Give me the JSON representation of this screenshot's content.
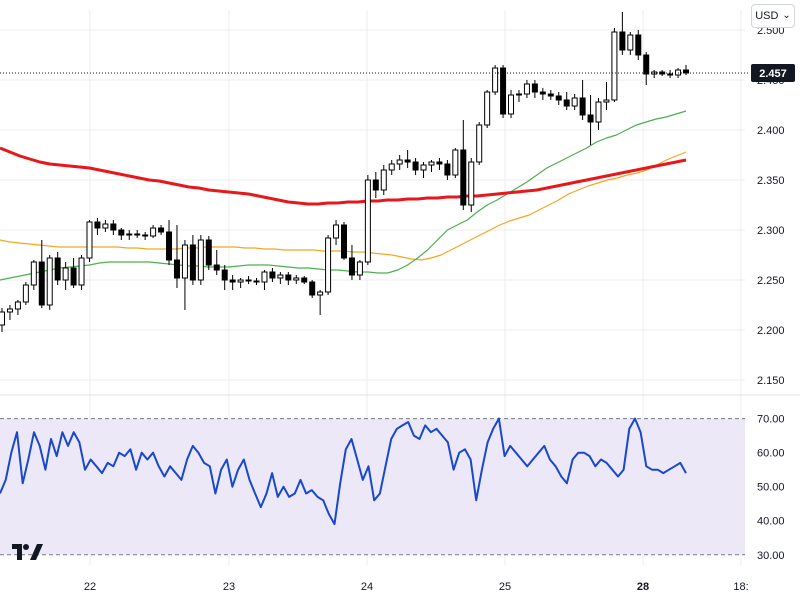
{
  "toolbar": {
    "currency_label": "USD",
    "currency_chevron": "chevron-down-icon"
  },
  "logo": {
    "name": "tradingview-logo",
    "text": "17"
  },
  "colors": {
    "up_candle_fill": "#ffffff",
    "down_candle_fill": "#000000",
    "candle_border": "#000000",
    "ma_long": "#e8171b",
    "ma_mid": "#f5a623",
    "ma_short": "#4caf50",
    "rsi_line": "#1848cc",
    "rsi_band": "#ece8f8",
    "last_price_bg": "#131722",
    "last_price_text": "#ffffff",
    "grid": "#eeeeee"
  },
  "chart_data": [
    {
      "type": "candlestick",
      "title": "",
      "ylim": [
        2.14,
        2.52
      ],
      "grid": true,
      "y_ticks": [
        "2.150",
        "2.200",
        "2.250",
        "2.300",
        "2.350",
        "2.400",
        "2.450",
        "2.500"
      ],
      "last_price_label": "2.457",
      "last_price": 2.457,
      "x_ticks": [
        "22",
        "23",
        "24",
        "25",
        "28",
        "18:"
      ],
      "x_tick_bold": "28",
      "candles": [
        [
          2.205,
          2.222,
          2.198,
          2.218
        ],
        [
          2.218,
          2.225,
          2.21,
          2.221
        ],
        [
          2.221,
          2.23,
          2.215,
          2.228
        ],
        [
          2.228,
          2.248,
          2.225,
          2.245
        ],
        [
          2.245,
          2.27,
          2.24,
          2.268
        ],
        [
          2.268,
          2.29,
          2.222,
          2.225
        ],
        [
          2.225,
          2.275,
          2.22,
          2.272
        ],
        [
          2.272,
          2.278,
          2.245,
          2.25
        ],
        [
          2.25,
          2.268,
          2.24,
          2.262
        ],
        [
          2.262,
          2.272,
          2.242,
          2.245
        ],
        [
          2.245,
          2.275,
          2.24,
          2.272
        ],
        [
          2.272,
          2.31,
          2.268,
          2.308
        ],
        [
          2.308,
          2.312,
          2.295,
          2.302
        ],
        [
          2.302,
          2.31,
          2.298,
          2.306
        ],
        [
          2.306,
          2.31,
          2.295,
          2.3
        ],
        [
          2.3,
          2.302,
          2.29,
          2.295
        ],
        [
          2.295,
          2.3,
          2.29,
          2.296
        ],
        [
          2.296,
          2.3,
          2.292,
          2.295
        ],
        [
          2.295,
          2.298,
          2.29,
          2.294
        ],
        [
          2.294,
          2.305,
          2.292,
          2.302
        ],
        [
          2.302,
          2.305,
          2.295,
          2.298
        ],
        [
          2.298,
          2.31,
          2.265,
          2.27
        ],
        [
          2.27,
          2.305,
          2.242,
          2.252
        ],
        [
          2.252,
          2.29,
          2.22,
          2.285
        ],
        [
          2.285,
          2.295,
          2.245,
          2.25
        ],
        [
          2.25,
          2.295,
          2.245,
          2.29
        ],
        [
          2.29,
          2.294,
          2.26,
          2.265
        ],
        [
          2.265,
          2.28,
          2.255,
          2.26
        ],
        [
          2.26,
          2.265,
          2.24,
          2.25
        ],
        [
          2.25,
          2.255,
          2.24,
          2.248
        ],
        [
          2.248,
          2.252,
          2.242,
          2.25
        ],
        [
          2.25,
          2.254,
          2.246,
          2.249
        ],
        [
          2.249,
          2.252,
          2.245,
          2.248
        ],
        [
          2.248,
          2.26,
          2.24,
          2.258
        ],
        [
          2.258,
          2.262,
          2.248,
          2.252
        ],
        [
          2.252,
          2.258,
          2.246,
          2.255
        ],
        [
          2.255,
          2.258,
          2.245,
          2.25
        ],
        [
          2.25,
          2.255,
          2.246,
          2.252
        ],
        [
          2.252,
          2.254,
          2.246,
          2.248
        ],
        [
          2.248,
          2.25,
          2.232,
          2.235
        ],
        [
          2.235,
          2.24,
          2.215,
          2.238
        ],
        [
          2.238,
          2.295,
          2.235,
          2.292
        ],
        [
          2.292,
          2.31,
          2.285,
          2.305
        ],
        [
          2.305,
          2.308,
          2.27,
          2.272
        ],
        [
          2.272,
          2.285,
          2.25,
          2.255
        ],
        [
          2.255,
          2.27,
          2.25,
          2.268
        ],
        [
          2.268,
          2.355,
          2.265,
          2.35
        ],
        [
          2.35,
          2.358,
          2.332,
          2.34
        ],
        [
          2.34,
          2.365,
          2.335,
          2.36
        ],
        [
          2.36,
          2.37,
          2.355,
          2.366
        ],
        [
          2.366,
          2.375,
          2.36,
          2.37
        ],
        [
          2.37,
          2.38,
          2.362,
          2.368
        ],
        [
          2.368,
          2.372,
          2.355,
          2.36
        ],
        [
          2.36,
          2.368,
          2.352,
          2.365
        ],
        [
          2.365,
          2.37,
          2.358,
          2.368
        ],
        [
          2.368,
          2.372,
          2.36,
          2.366
        ],
        [
          2.366,
          2.37,
          2.35,
          2.355
        ],
        [
          2.355,
          2.382,
          2.352,
          2.38
        ],
        [
          2.38,
          2.41,
          2.32,
          2.325
        ],
        [
          2.325,
          2.372,
          2.318,
          2.368
        ],
        [
          2.368,
          2.408,
          2.365,
          2.405
        ],
        [
          2.405,
          2.44,
          2.402,
          2.438
        ],
        [
          2.438,
          2.465,
          2.435,
          2.462
        ],
        [
          2.462,
          2.465,
          2.412,
          2.416
        ],
        [
          2.416,
          2.44,
          2.412,
          2.435
        ],
        [
          2.435,
          2.44,
          2.428,
          2.436
        ],
        [
          2.436,
          2.45,
          2.432,
          2.446
        ],
        [
          2.446,
          2.45,
          2.432,
          2.438
        ],
        [
          2.438,
          2.442,
          2.43,
          2.436
        ],
        [
          2.436,
          2.44,
          2.43,
          2.434
        ],
        [
          2.434,
          2.438,
          2.425,
          2.43
        ],
        [
          2.43,
          2.438,
          2.42,
          2.424
        ],
        [
          2.424,
          2.436,
          2.42,
          2.432
        ],
        [
          2.432,
          2.45,
          2.41,
          2.415
        ],
        [
          2.415,
          2.435,
          2.385,
          2.408
        ],
        [
          2.408,
          2.432,
          2.4,
          2.428
        ],
        [
          2.428,
          2.448,
          2.42,
          2.43
        ],
        [
          2.43,
          2.502,
          2.428,
          2.498
        ],
        [
          2.498,
          2.518,
          2.475,
          2.48
        ],
        [
          2.48,
          2.498,
          2.475,
          2.495
        ],
        [
          2.495,
          2.5,
          2.47,
          2.475
        ],
        [
          2.475,
          2.478,
          2.445,
          2.456
        ],
        [
          2.456,
          2.46,
          2.452,
          2.458
        ],
        [
          2.458,
          2.46,
          2.454,
          2.456
        ],
        [
          2.456,
          2.46,
          2.452,
          2.455
        ],
        [
          2.455,
          2.462,
          2.452,
          2.46
        ],
        [
          2.46,
          2.465,
          2.455,
          2.457
        ]
      ],
      "ma_long": [
        2.382,
        2.378,
        2.374,
        2.371,
        2.368,
        2.366,
        2.365,
        2.364,
        2.363,
        2.362,
        2.36,
        2.358,
        2.356,
        2.354,
        2.352,
        2.35,
        2.349,
        2.347,
        2.345,
        2.343,
        2.342,
        2.34,
        2.339,
        2.338,
        2.337,
        2.336,
        2.334,
        2.332,
        2.33,
        2.328,
        2.327,
        2.326,
        2.326,
        2.327,
        2.327,
        2.328,
        2.328,
        2.329,
        2.329,
        2.33,
        2.33,
        2.331,
        2.331,
        2.332,
        2.332,
        2.333,
        2.333,
        2.334,
        2.334,
        2.335,
        2.336,
        2.337,
        2.338,
        2.339,
        2.34,
        2.342,
        2.344,
        2.346,
        2.348,
        2.35,
        2.352,
        2.354,
        2.356,
        2.358,
        2.36,
        2.362,
        2.364,
        2.366,
        2.368,
        2.37
      ],
      "ma_mid": [
        2.29,
        2.288,
        2.287,
        2.286,
        2.285,
        2.284,
        2.283,
        2.283,
        2.283,
        2.283,
        2.283,
        2.283,
        2.283,
        2.282,
        2.282,
        2.281,
        2.281,
        2.281,
        2.281,
        2.282,
        2.282,
        2.283,
        2.283,
        2.283,
        2.283,
        2.282,
        2.282,
        2.281,
        2.281,
        2.28,
        2.28,
        2.28,
        2.28,
        2.279,
        2.279,
        2.279,
        2.278,
        2.278,
        2.277,
        2.276,
        2.275,
        2.273,
        2.271,
        2.27,
        2.272,
        2.275,
        2.28,
        2.285,
        2.29,
        2.295,
        2.3,
        2.305,
        2.309,
        2.312,
        2.315,
        2.32,
        2.325,
        2.33,
        2.336,
        2.34,
        2.344,
        2.347,
        2.35,
        2.352,
        2.355,
        2.357,
        2.36,
        2.365,
        2.37,
        2.374,
        2.378
      ],
      "ma_short": [
        2.25,
        2.252,
        2.254,
        2.256,
        2.258,
        2.26,
        2.262,
        2.263,
        2.264,
        2.265,
        2.267,
        2.268,
        2.268,
        2.268,
        2.268,
        2.268,
        2.267,
        2.266,
        2.265,
        2.264,
        2.264,
        2.263,
        2.263,
        2.263,
        2.264,
        2.265,
        2.265,
        2.265,
        2.264,
        2.263,
        2.262,
        2.262,
        2.261,
        2.26,
        2.26,
        2.259,
        2.258,
        2.258,
        2.257,
        2.257,
        2.26,
        2.265,
        2.272,
        2.28,
        2.29,
        2.3,
        2.305,
        2.31,
        2.318,
        2.325,
        2.33,
        2.336,
        2.342,
        2.348,
        2.355,
        2.362,
        2.367,
        2.372,
        2.377,
        2.382,
        2.388,
        2.392,
        2.395,
        2.4,
        2.405,
        2.408,
        2.411,
        2.413,
        2.416,
        2.419
      ]
    },
    {
      "type": "line",
      "title": "",
      "ylim": [
        27,
        74
      ],
      "y_ticks": [
        "30.00",
        "40.00",
        "50.00",
        "60.00",
        "70.00"
      ],
      "band": [
        30,
        70
      ],
      "values": [
        48,
        52,
        60,
        66,
        51,
        58,
        66,
        62,
        55,
        64,
        59,
        66,
        62,
        66,
        63,
        55,
        58,
        56,
        54,
        57,
        56,
        60,
        59,
        61,
        55,
        60,
        58,
        60,
        56,
        53,
        56,
        54,
        52,
        58,
        62,
        60,
        57,
        56,
        48,
        55,
        58,
        50,
        55,
        58,
        52,
        48,
        44,
        48,
        54,
        47,
        50,
        47,
        48,
        52,
        48,
        49,
        47,
        46,
        42,
        39,
        51,
        61,
        64,
        58,
        52,
        56,
        46,
        48,
        56,
        64,
        67,
        68,
        69,
        65,
        64,
        68,
        66,
        67,
        65,
        63,
        55,
        60,
        61,
        58,
        46,
        55,
        63,
        67,
        70,
        59,
        62,
        60,
        58,
        56,
        58,
        60,
        62,
        58,
        56,
        53,
        51,
        58,
        60,
        60,
        59,
        56,
        58,
        57,
        55,
        53,
        55,
        67,
        70,
        66,
        56,
        55,
        55,
        54,
        55,
        56,
        57,
        54
      ]
    }
  ]
}
